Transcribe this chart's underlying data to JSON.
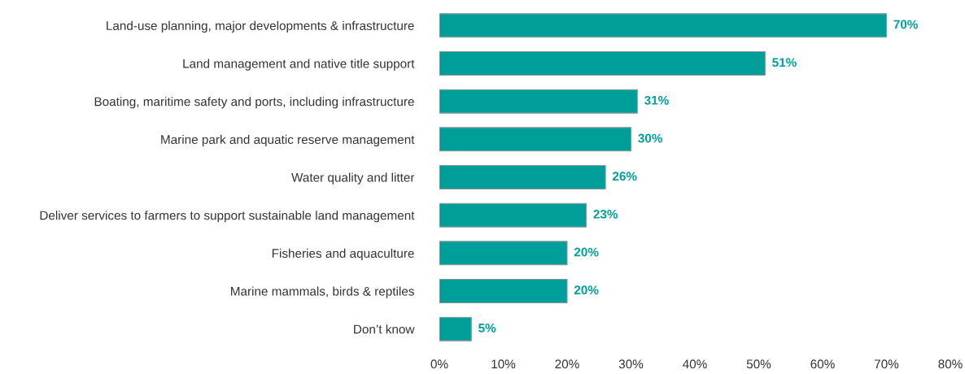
{
  "chart_data": {
    "type": "bar",
    "orientation": "horizontal",
    "categories": [
      "Land-use planning, major developments & infrastructure",
      "Land management and native title support",
      "Boating, maritime safety and ports, including infrastructure",
      "Marine park and aquatic reserve management",
      "Water quality and litter",
      "Deliver services to farmers to support sustainable land management",
      "Fisheries and aquaculture",
      "Marine mammals, birds & reptiles",
      "Don’t know"
    ],
    "values": [
      70,
      51,
      31,
      30,
      26,
      23,
      20,
      20,
      5
    ],
    "value_labels": [
      "70%",
      "51%",
      "31%",
      "30%",
      "26%",
      "23%",
      "20%",
      "20%",
      "5%"
    ],
    "color": "#009e99",
    "xlim": [
      0,
      80
    ],
    "xticks": [
      {
        "value": 0,
        "label": "0%"
      },
      {
        "value": 10,
        "label": "10%"
      },
      {
        "value": 20,
        "label": "20%"
      },
      {
        "value": 30,
        "label": "30%"
      },
      {
        "value": 40,
        "label": "40%"
      },
      {
        "value": 50,
        "label": "50%"
      },
      {
        "value": 60,
        "label": "60%"
      },
      {
        "value": 70,
        "label": "70%"
      },
      {
        "value": 80,
        "label": "80%"
      }
    ],
    "grid": false,
    "legend": false
  }
}
